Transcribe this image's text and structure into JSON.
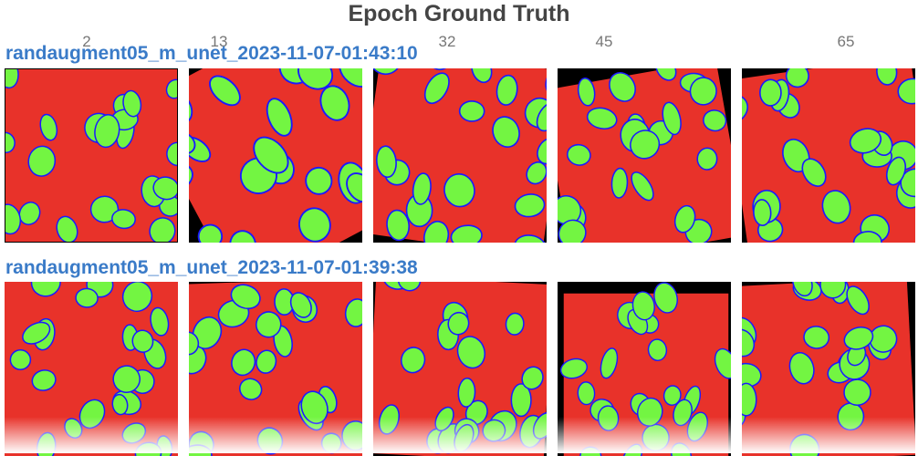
{
  "panel": {
    "title": "Epoch Ground Truth"
  },
  "epochs": [
    "2",
    "13",
    "32",
    "45",
    "65"
  ],
  "runs": [
    {
      "name": "randaugment05_m_unet_2023-11-07-01:43:10"
    },
    {
      "name": "randaugment05_m_unet_2023-11-07-01:39:38"
    }
  ],
  "colors": {
    "background": "#e8322a",
    "cell": "#73f542",
    "border": "#1a1aff",
    "padding": "#000000",
    "label": "#3a7bc8"
  }
}
